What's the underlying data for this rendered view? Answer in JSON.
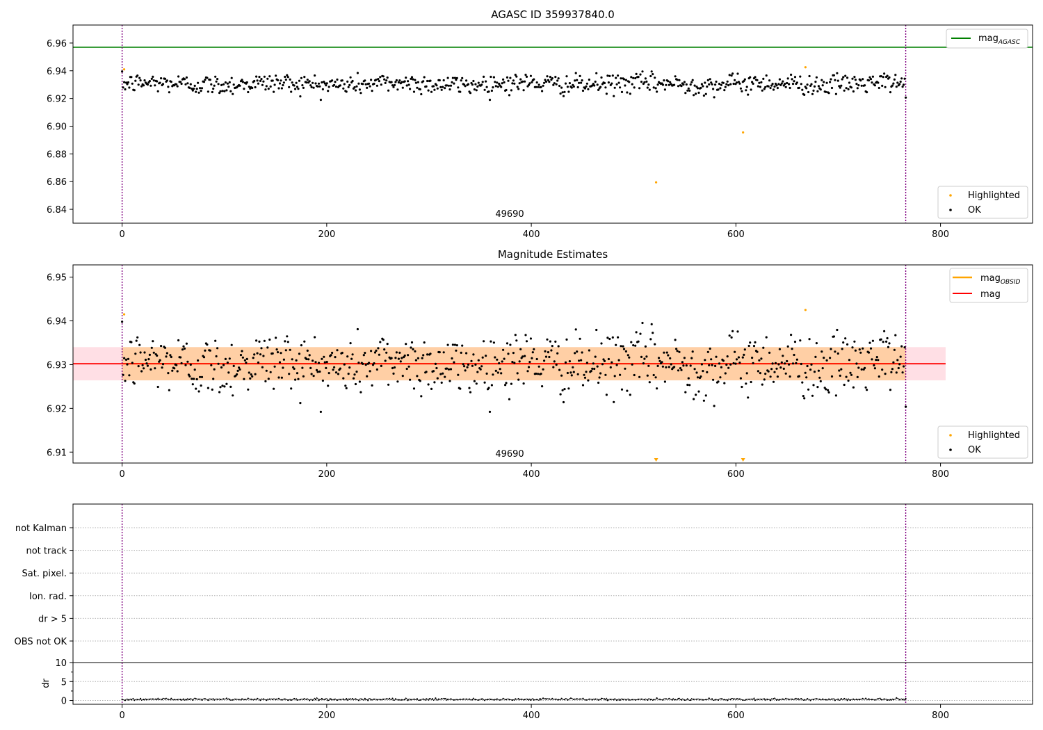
{
  "chart_data": [
    {
      "type": "scatter",
      "title": "AGASC ID 359937840.0",
      "xlim": [
        -48,
        890
      ],
      "ylim": [
        6.83,
        6.973
      ],
      "x_ticks": [
        0,
        200,
        400,
        600,
        800
      ],
      "y_ticks": [
        6.84,
        6.86,
        6.88,
        6.9,
        6.92,
        6.94,
        6.96
      ],
      "y_tick_labels": [
        "6.84",
        "6.86",
        "6.88",
        "6.90",
        "6.92",
        "6.94",
        "6.96"
      ],
      "obsid_label": "49690",
      "obsid_label_x": 383,
      "obsid_boundaries": [
        0,
        766
      ],
      "reference_lines": [
        {
          "name": "mag",
          "subscript": "AGASC",
          "y": 6.957,
          "color": "#008000"
        }
      ],
      "legend_lines": [
        {
          "name": "mag",
          "subscript": "AGASC",
          "color": "#008000"
        }
      ],
      "legend_points": [
        {
          "name": "Highlighted",
          "color": "#ffa500"
        },
        {
          "name": "OK",
          "color": "#000000"
        }
      ],
      "series": [
        {
          "name": "OK",
          "color": "#000000",
          "x_start": 0,
          "x_end": 766,
          "count": 766,
          "mean": 6.9305,
          "spread": 0.0042,
          "min": 6.919,
          "max": 6.9395
        },
        {
          "name": "Highlighted",
          "color": "#ffa500",
          "x": [
            2,
            522,
            607,
            668
          ],
          "y": [
            6.941,
            6.8595,
            6.8955,
            6.9425
          ]
        }
      ]
    },
    {
      "type": "scatter",
      "title": "Magnitude Estimates",
      "xlim": [
        -48,
        890
      ],
      "ylim": [
        6.9075,
        6.9528
      ],
      "x_ticks": [
        0,
        200,
        400,
        600,
        800
      ],
      "y_ticks": [
        6.91,
        6.92,
        6.93,
        6.94,
        6.95
      ],
      "y_tick_labels": [
        "6.91",
        "6.92",
        "6.93",
        "6.94",
        "6.95"
      ],
      "obsid_label": "49690",
      "obsid_label_x": 383,
      "obsid_boundaries": [
        0,
        766
      ],
      "mag_line": {
        "name": "mag",
        "y": 6.9302,
        "color": "#ff0000",
        "band": [
          6.9264,
          6.934
        ]
      },
      "obsid_line": {
        "name": "mag",
        "subscript": "OBSID",
        "y": 6.9302,
        "color": "#ffa500",
        "band": [
          6.9264,
          6.934
        ]
      },
      "legend_lines": [
        {
          "name": "mag",
          "subscript": "OBSID",
          "color": "#ffa500"
        },
        {
          "name": "mag",
          "subscript": "",
          "color": "#ff0000"
        }
      ],
      "legend_points": [
        {
          "name": "Highlighted",
          "color": "#ffa500"
        },
        {
          "name": "OK",
          "color": "#000000"
        }
      ],
      "series": [
        {
          "name": "OK",
          "color": "#000000",
          "x_start": 0,
          "x_end": 766,
          "count": 766,
          "mean": 6.9302,
          "spread": 0.0042,
          "min": 6.9192,
          "max": 6.9398
        },
        {
          "name": "Highlighted",
          "color": "#ffa500",
          "x": [
            2,
            668
          ],
          "y": [
            6.9415,
            6.9425
          ]
        },
        {
          "name": "Highlighted (off-scale, below)",
          "color": "#ffa500",
          "marker": "triangle-down",
          "x": [
            522,
            607
          ]
        }
      ]
    },
    {
      "type": "scatter",
      "title": "",
      "xlim": [
        -48,
        890
      ],
      "flag_categories": [
        "not Kalman",
        "not track",
        "Sat. pixel.",
        "Ion. rad.",
        "dr > 5",
        "OBS not OK"
      ],
      "obsid_boundaries": [
        0,
        766
      ]
    },
    {
      "type": "line",
      "title": "",
      "xlim": [
        -48,
        890
      ],
      "ylim": [
        -1,
        10
      ],
      "x_ticks": [
        0,
        200,
        400,
        600,
        800
      ],
      "y_ticks": [
        0,
        5,
        10
      ],
      "ylabel": "dr",
      "obsid_boundaries": [
        0,
        766
      ],
      "series": [
        {
          "name": "dr",
          "color": "#000000",
          "x_start": 0,
          "x_end": 766,
          "count": 766,
          "mean": 0.3,
          "spread": 0.15
        }
      ]
    }
  ]
}
